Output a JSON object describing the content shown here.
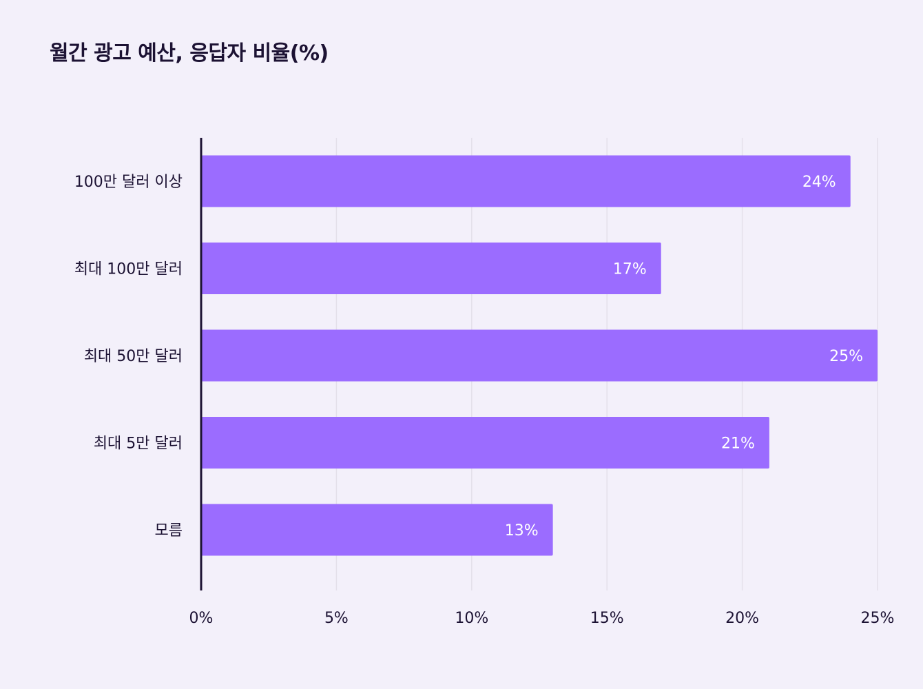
{
  "chart_data": {
    "type": "bar",
    "orientation": "horizontal",
    "title": "월간 광고 예산, 응답자 비율(%)",
    "categories": [
      "100만 달러 이상",
      "최대 100만 달러",
      "최대 50만 달러",
      "최대 5만 달러",
      "모름"
    ],
    "values": [
      24,
      17,
      25,
      21,
      13
    ],
    "value_labels": [
      "24%",
      "17%",
      "25%",
      "21%",
      "13%"
    ],
    "xlim": [
      0,
      25
    ],
    "xticks": [
      0,
      5,
      10,
      15,
      20,
      25
    ],
    "xtick_labels": [
      "0%",
      "5%",
      "10%",
      "15%",
      "20%",
      "25%"
    ],
    "xlabel": "",
    "ylabel": "",
    "grid": true,
    "legend": false
  },
  "colors": {
    "background": "#f3f0fa",
    "bar": "#9b6cff",
    "axis": "#1c1233",
    "grid": "#e4e0ea",
    "text": "#1c1233",
    "value_text": "#ffffff"
  }
}
